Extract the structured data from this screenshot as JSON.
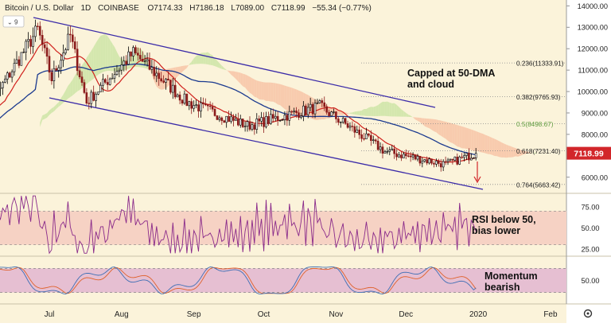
{
  "header": {
    "title": "Bitcoin / U.S. Dollar",
    "interval": "1D",
    "exchange": "COINBASE",
    "open": "O7174.33",
    "high": "H7186.18",
    "low": "L7089.00",
    "close": "C7118.99",
    "change": "−55.34 (−0.77%)",
    "indicator_count": "9"
  },
  "annotations": {
    "main": "Capped at 50-DMA\nand cloud",
    "rsi": "RSI below 50,\nbias lower",
    "momentum": "Momentum\nbearish"
  },
  "price_tag": "7118.99",
  "colors": {
    "background": "#fbf3da",
    "up_candle": "#000000",
    "down_candle": "#8b1a1a",
    "channel": "#3a2aa8",
    "ma_fast": "#d0201c",
    "ma_slow": "#1b3a8f",
    "cloud_bear": "#f7c7a8",
    "cloud_bull": "#cfe6a8",
    "rsi_line": "#8a2a8a",
    "rsi_band": "#f6d2c4",
    "stoch_band": "#e6bfd2",
    "stoch_k": "#3f6fb5",
    "stoch_d": "#e0612b",
    "price_tag_bg": "#d2262a",
    "fib_text": "#222222",
    "fib_text_highlight": "#5e9b3e",
    "arrow": "#d2262a"
  },
  "chart_data": [
    {
      "type": "candlestick",
      "panel": "price",
      "x_ticks": [
        "Jul",
        "Aug",
        "Sep",
        "Oct",
        "Nov",
        "Dec",
        "2020",
        "Feb"
      ],
      "y_ticks": [
        6000,
        7000,
        8000,
        9000,
        10000,
        11000,
        12000,
        13000,
        14000
      ],
      "ylim": [
        5200,
        14200
      ],
      "ohlc_key_points": [
        {
          "date": "2019-06-01",
          "close": 8600
        },
        {
          "date": "2019-06-26",
          "close": 12900
        },
        {
          "date": "2019-07-02",
          "close": 10600
        },
        {
          "date": "2019-07-10",
          "close": 12600
        },
        {
          "date": "2019-07-17",
          "close": 9500
        },
        {
          "date": "2019-08-06",
          "close": 11800
        },
        {
          "date": "2019-08-29",
          "close": 9500
        },
        {
          "date": "2019-09-24",
          "close": 8400
        },
        {
          "date": "2019-10-25",
          "close": 9300
        },
        {
          "date": "2019-11-22",
          "close": 7200
        },
        {
          "date": "2019-12-18",
          "close": 6600
        },
        {
          "date": "2019-12-31",
          "close": 7118.99
        }
      ],
      "fibonacci_levels": [
        {
          "label": "0.236(11333.91)",
          "value": 11333.91
        },
        {
          "label": "0.382(9765.93)",
          "value": 9765.93
        },
        {
          "label": "0.5(8498.67)",
          "value": 8498.67
        },
        {
          "label": "0.618(7231.40)",
          "value": 7231.4
        },
        {
          "label": "0.764(5663.42)",
          "value": 5663.42
        }
      ],
      "last_price": 7118.99
    },
    {
      "type": "line",
      "panel": "rsi",
      "name": "",
      "y_ticks": [
        25.0,
        50.0,
        75.0
      ],
      "ylim": [
        20,
        90
      ],
      "band": [
        30,
        70
      ],
      "last_value": 46
    },
    {
      "type": "line",
      "panel": "stochastic",
      "y_ticks": [
        50.0
      ],
      "ylim": [
        0,
        100
      ],
      "band": [
        20,
        80
      ],
      "last_value": 25
    }
  ],
  "toolbar": {
    "settings_icon": "gear-icon"
  }
}
